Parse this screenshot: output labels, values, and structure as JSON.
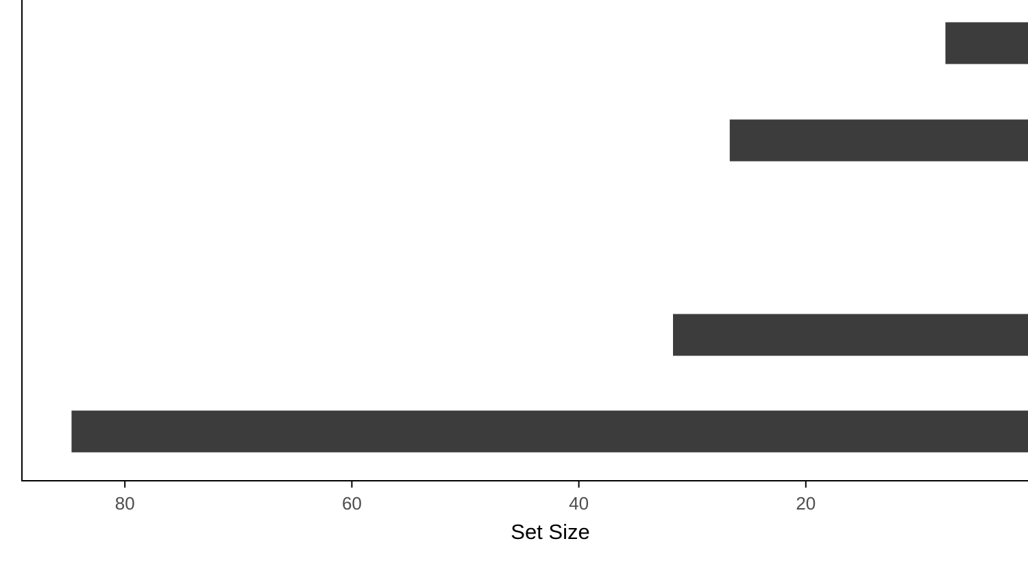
{
  "chart_data": {
    "type": "bar",
    "orientation": "horizontal",
    "x_axis_reversed": true,
    "xlabel": "Set Size",
    "ylabel": "",
    "title": "",
    "xlim": [
      0,
      88.8
    ],
    "x_ticks": [
      80,
      60,
      40,
      20
    ],
    "x_tick_labels": [
      "80",
      "60",
      "40",
      "20"
    ],
    "bar_order": "top-to-bottom",
    "categories_hidden": true,
    "values": [
      7.7,
      26.7,
      0,
      31.7,
      84.7
    ],
    "bar_color": "#3c3c3c",
    "axis_color": "#000000",
    "grid": false,
    "legend": "none"
  }
}
